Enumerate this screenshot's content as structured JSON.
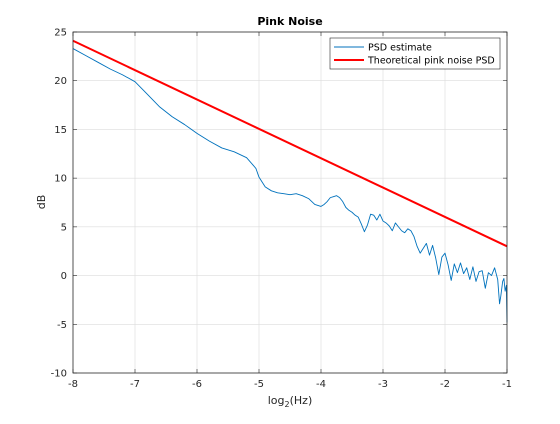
{
  "chart_data": {
    "type": "line",
    "title": "Pink Noise",
    "xlabel_main": "log",
    "xlabel_sub": "2",
    "xlabel_rest": "(Hz)",
    "ylabel": "dB",
    "xlim": [
      -8,
      -1
    ],
    "ylim": [
      -10,
      25
    ],
    "xticks": [
      -8,
      -7,
      -6,
      -5,
      -4,
      -3,
      -2,
      -1
    ],
    "yticks": [
      -10,
      -5,
      0,
      5,
      10,
      15,
      20,
      25
    ],
    "grid": true,
    "legend_position": "top-right",
    "series": [
      {
        "name": "PSD estimate",
        "color": "#0072BD",
        "points": [
          [
            -8,
            23.3
          ],
          [
            -7.8,
            22.6
          ],
          [
            -7.6,
            21.9
          ],
          [
            -7.4,
            21.2
          ],
          [
            -7.2,
            20.6
          ],
          [
            -7.0,
            19.9
          ],
          [
            -6.8,
            18.6
          ],
          [
            -6.6,
            17.3
          ],
          [
            -6.4,
            16.3
          ],
          [
            -6.2,
            15.5
          ],
          [
            -6.0,
            14.6
          ],
          [
            -5.8,
            13.8
          ],
          [
            -5.6,
            13.1
          ],
          [
            -5.4,
            12.7
          ],
          [
            -5.2,
            12.1
          ],
          [
            -5.05,
            11.0
          ],
          [
            -5.0,
            10.1
          ],
          [
            -4.9,
            9.1
          ],
          [
            -4.8,
            8.7
          ],
          [
            -4.7,
            8.5
          ],
          [
            -4.6,
            8.4
          ],
          [
            -4.5,
            8.3
          ],
          [
            -4.4,
            8.4
          ],
          [
            -4.3,
            8.2
          ],
          [
            -4.2,
            7.9
          ],
          [
            -4.1,
            7.3
          ],
          [
            -4.0,
            7.1
          ],
          [
            -3.95,
            7.3
          ],
          [
            -3.9,
            7.6
          ],
          [
            -3.85,
            8.0
          ],
          [
            -3.8,
            8.1
          ],
          [
            -3.75,
            8.2
          ],
          [
            -3.7,
            8.0
          ],
          [
            -3.65,
            7.6
          ],
          [
            -3.6,
            7.0
          ],
          [
            -3.55,
            6.7
          ],
          [
            -3.5,
            6.5
          ],
          [
            -3.45,
            6.2
          ],
          [
            -3.4,
            6.0
          ],
          [
            -3.35,
            5.3
          ],
          [
            -3.3,
            4.5
          ],
          [
            -3.25,
            5.2
          ],
          [
            -3.2,
            6.3
          ],
          [
            -3.15,
            6.2
          ],
          [
            -3.1,
            5.7
          ],
          [
            -3.05,
            6.3
          ],
          [
            -3.0,
            5.6
          ],
          [
            -2.95,
            5.4
          ],
          [
            -2.9,
            5.1
          ],
          [
            -2.85,
            4.6
          ],
          [
            -2.8,
            5.4
          ],
          [
            -2.75,
            5.0
          ],
          [
            -2.7,
            4.6
          ],
          [
            -2.65,
            4.4
          ],
          [
            -2.6,
            4.8
          ],
          [
            -2.55,
            4.6
          ],
          [
            -2.5,
            4.0
          ],
          [
            -2.45,
            3.0
          ],
          [
            -2.4,
            2.3
          ],
          [
            -2.35,
            2.8
          ],
          [
            -2.3,
            3.3
          ],
          [
            -2.25,
            2.1
          ],
          [
            -2.2,
            3.1
          ],
          [
            -2.15,
            1.8
          ],
          [
            -2.1,
            0.1
          ],
          [
            -2.05,
            1.9
          ],
          [
            -2.0,
            2.3
          ],
          [
            -1.95,
            1.1
          ],
          [
            -1.9,
            -0.5
          ],
          [
            -1.85,
            1.2
          ],
          [
            -1.8,
            0.3
          ],
          [
            -1.75,
            1.3
          ],
          [
            -1.7,
            0.2
          ],
          [
            -1.65,
            0.8
          ],
          [
            -1.6,
            -0.4
          ],
          [
            -1.55,
            0.9
          ],
          [
            -1.5,
            -0.6
          ],
          [
            -1.45,
            0.4
          ],
          [
            -1.4,
            0.5
          ],
          [
            -1.35,
            -1.3
          ],
          [
            -1.3,
            0.3
          ],
          [
            -1.25,
            0.0
          ],
          [
            -1.2,
            0.8
          ],
          [
            -1.15,
            -0.4
          ],
          [
            -1.12,
            -2.9
          ],
          [
            -1.1,
            -2.1
          ],
          [
            -1.07,
            -0.6
          ],
          [
            -1.05,
            -0.3
          ],
          [
            -1.03,
            -1.6
          ],
          [
            -1.01,
            -1.0
          ],
          [
            -1.0,
            -4.8
          ]
        ]
      },
      {
        "name": "Theoretical pink noise PSD",
        "color": "#FF0000",
        "points": [
          [
            -8,
            24.1
          ],
          [
            -1,
            3.0
          ]
        ]
      }
    ]
  }
}
